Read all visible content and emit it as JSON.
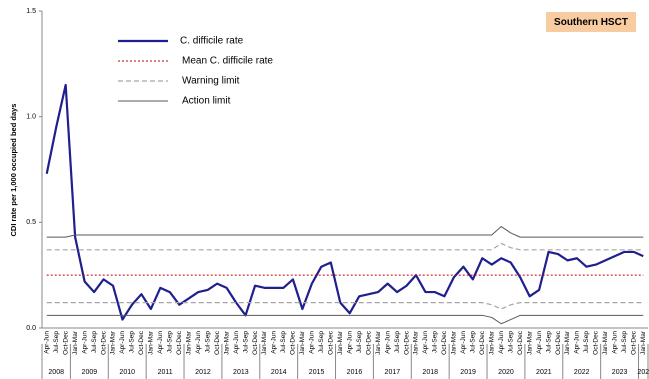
{
  "chart_data": {
    "type": "line",
    "badge": "Southern HSCT",
    "y_label": "CDI rate per 1,000 occupied bed days",
    "ylim": [
      0,
      1.5
    ],
    "yticks": [
      {
        "value": 0,
        "label": "0.0"
      },
      0.5,
      {
        "value": 1,
        "label": "1.0"
      },
      1.5
    ],
    "categories": [
      "Apr-Jun",
      "Jul-Sep",
      "Oct-Dec",
      "Jan-Mar",
      "Apr-Jun",
      "Jul-Sep",
      "Oct-Dec",
      "Jan-Mar",
      "Apr-Jun",
      "Jul-Sep",
      "Oct-Dec",
      "Jan-Mar",
      "Apr-Jun",
      "Jul-Sep",
      "Oct-Dec",
      "Jan-Mar",
      "Apr-Jun",
      "Jul-Sep",
      "Oct-Dec",
      "Jan-Mar",
      "Apr-Jun",
      "Jul-Sep",
      "Oct-Dec",
      "Jan-Mar",
      "Apr-Jun",
      "Jul-Sep",
      "Oct-Dec",
      "Jan-Mar",
      "Apr-Jun",
      "Jul-Sep",
      "Oct-Dec",
      "Jan-Mar",
      "Apr-Jun",
      "Jul-Sep",
      "Oct-Dec",
      "Jan-Mar",
      "Apr-Jun",
      "Jul-Sep",
      "Oct-Dec",
      "Jan-Mar",
      "Apr-Jun",
      "Jul-Sep",
      "Oct-Dec",
      "Jan-Mar",
      "Apr-Jun",
      "Jul-Sep",
      "Oct-Dec",
      "Jan-Mar",
      "Apr-Jun",
      "Jul-Sep",
      "Oct-Dec",
      "Jan-Mar",
      "Apr-Jun",
      "Jul-Sep",
      "Oct-Dec",
      "Jan-Mar",
      "Apr-Jun",
      "Jul-Sep",
      "Oct-Dec",
      "Jan-Mar",
      "Apr-Jun",
      "Jul-Sep",
      "Oct-Dec",
      "Jan-Mar"
    ],
    "years": [
      "2008",
      "2009",
      "2010",
      "2011",
      "2012",
      "2013",
      "2014",
      "2015",
      "2016",
      "2017",
      "2018",
      "2019",
      "2020",
      "2021",
      "2022",
      "2023",
      "202"
    ],
    "series": [
      {
        "name": "C. difficile rate",
        "color": "#1f1f8f",
        "style": "solid",
        "values": [
          0.73,
          0.95,
          1.15,
          0.43,
          0.22,
          0.17,
          0.23,
          0.2,
          0.04,
          0.11,
          0.16,
          0.09,
          0.19,
          0.17,
          0.11,
          0.14,
          0.17,
          0.18,
          0.21,
          0.19,
          0.12,
          0.06,
          0.2,
          0.19,
          0.19,
          0.19,
          0.23,
          0.09,
          0.21,
          0.29,
          0.31,
          0.12,
          0.07,
          0.15,
          0.16,
          0.17,
          0.21,
          0.17,
          0.2,
          0.25,
          0.17,
          0.17,
          0.15,
          0.24,
          0.29,
          0.23,
          0.33,
          0.3,
          0.33,
          0.31,
          0.24,
          0.15,
          0.18,
          0.36,
          0.35,
          0.32,
          0.33,
          0.29,
          0.3,
          0.32,
          0.34,
          0.36,
          0.36,
          0.34
        ]
      },
      {
        "name": "Mean C. difficile rate",
        "color": "#c00000",
        "style": "dotted",
        "values": [
          0.25,
          0.25,
          0.25,
          0.25,
          0.25,
          0.25,
          0.25,
          0.25,
          0.25,
          0.25,
          0.25,
          0.25,
          0.25,
          0.25,
          0.25,
          0.25,
          0.25,
          0.25,
          0.25,
          0.25,
          0.25,
          0.25,
          0.25,
          0.25,
          0.25,
          0.25,
          0.25,
          0.25,
          0.25,
          0.25,
          0.25,
          0.25,
          0.25,
          0.25,
          0.25,
          0.25,
          0.25,
          0.25,
          0.25,
          0.25,
          0.25,
          0.25,
          0.25,
          0.25,
          0.25,
          0.25,
          0.25,
          0.25,
          0.25,
          0.25,
          0.25,
          0.25,
          0.25,
          0.25,
          0.25,
          0.25,
          0.25,
          0.25,
          0.25,
          0.25,
          0.25,
          0.25,
          0.25,
          0.25
        ]
      },
      {
        "name": "Warning limit",
        "color": "#a6a6a6",
        "style": "dashed",
        "upper": [
          0.37,
          0.37,
          0.37,
          0.37,
          0.37,
          0.37,
          0.37,
          0.37,
          0.37,
          0.37,
          0.37,
          0.37,
          0.37,
          0.37,
          0.37,
          0.37,
          0.37,
          0.37,
          0.37,
          0.37,
          0.37,
          0.37,
          0.37,
          0.37,
          0.37,
          0.37,
          0.37,
          0.37,
          0.37,
          0.37,
          0.37,
          0.37,
          0.37,
          0.37,
          0.37,
          0.37,
          0.37,
          0.37,
          0.37,
          0.37,
          0.37,
          0.37,
          0.37,
          0.37,
          0.37,
          0.37,
          0.37,
          0.37,
          0.4,
          0.38,
          0.37,
          0.37,
          0.37,
          0.37,
          0.37,
          0.37,
          0.37,
          0.37,
          0.37,
          0.37,
          0.37,
          0.37,
          0.37,
          0.37
        ],
        "lower": [
          0.12,
          0.12,
          0.12,
          0.12,
          0.12,
          0.12,
          0.12,
          0.12,
          0.12,
          0.12,
          0.12,
          0.12,
          0.12,
          0.12,
          0.12,
          0.12,
          0.12,
          0.12,
          0.12,
          0.12,
          0.12,
          0.12,
          0.12,
          0.12,
          0.12,
          0.12,
          0.12,
          0.12,
          0.12,
          0.12,
          0.12,
          0.12,
          0.12,
          0.12,
          0.12,
          0.12,
          0.12,
          0.12,
          0.12,
          0.12,
          0.12,
          0.12,
          0.12,
          0.12,
          0.12,
          0.12,
          0.12,
          0.11,
          0.09,
          0.11,
          0.12,
          0.12,
          0.12,
          0.12,
          0.12,
          0.12,
          0.12,
          0.12,
          0.12,
          0.12,
          0.12,
          0.12,
          0.12,
          0.12
        ]
      },
      {
        "name": "Action limit",
        "color": "#595959",
        "style": "solid-thin",
        "upper": [
          0.43,
          0.43,
          0.43,
          0.44,
          0.44,
          0.44,
          0.44,
          0.44,
          0.44,
          0.44,
          0.44,
          0.44,
          0.44,
          0.44,
          0.44,
          0.44,
          0.44,
          0.44,
          0.44,
          0.44,
          0.44,
          0.44,
          0.44,
          0.44,
          0.44,
          0.44,
          0.44,
          0.44,
          0.44,
          0.44,
          0.44,
          0.44,
          0.44,
          0.44,
          0.44,
          0.44,
          0.44,
          0.44,
          0.44,
          0.44,
          0.44,
          0.44,
          0.44,
          0.44,
          0.44,
          0.44,
          0.44,
          0.44,
          0.48,
          0.45,
          0.43,
          0.43,
          0.43,
          0.43,
          0.43,
          0.43,
          0.43,
          0.43,
          0.43,
          0.43,
          0.43,
          0.43,
          0.43,
          0.43
        ],
        "lower": [
          0.06,
          0.06,
          0.06,
          0.06,
          0.06,
          0.06,
          0.06,
          0.06,
          0.06,
          0.06,
          0.06,
          0.06,
          0.06,
          0.06,
          0.06,
          0.06,
          0.06,
          0.06,
          0.06,
          0.06,
          0.06,
          0.06,
          0.06,
          0.06,
          0.06,
          0.06,
          0.06,
          0.06,
          0.06,
          0.06,
          0.06,
          0.06,
          0.06,
          0.06,
          0.06,
          0.06,
          0.06,
          0.06,
          0.06,
          0.06,
          0.06,
          0.06,
          0.06,
          0.06,
          0.06,
          0.06,
          0.06,
          0.05,
          0.02,
          0.04,
          0.06,
          0.06,
          0.06,
          0.06,
          0.06,
          0.06,
          0.06,
          0.06,
          0.06,
          0.06,
          0.06,
          0.06,
          0.06,
          0.06
        ]
      }
    ]
  }
}
